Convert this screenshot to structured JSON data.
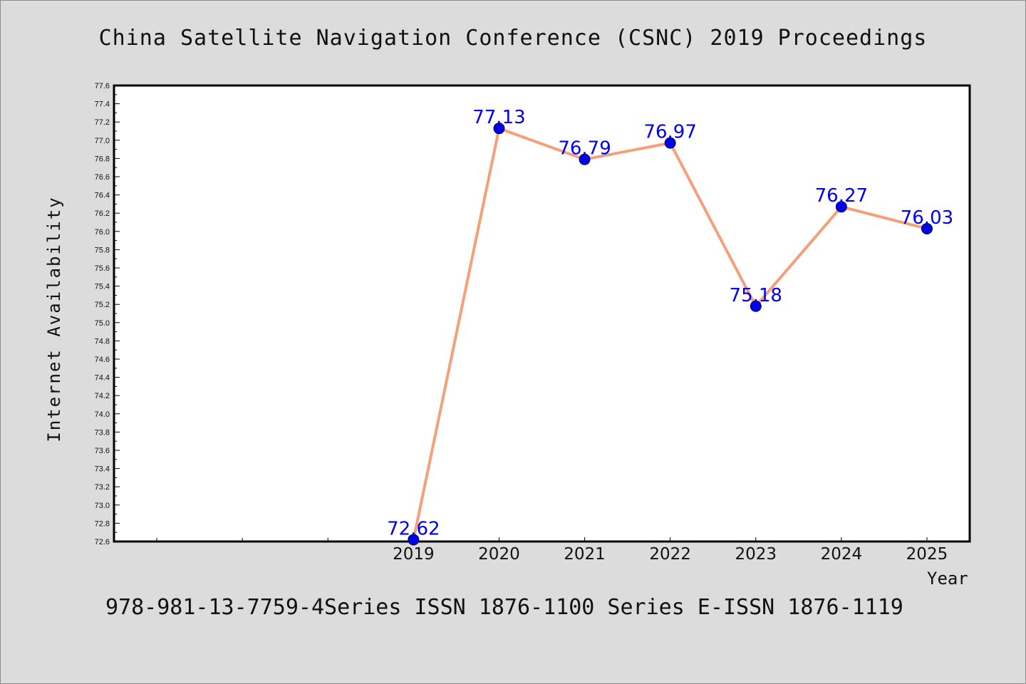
{
  "chart_data": {
    "type": "line",
    "title": "China Satellite Navigation Conference (CSNC) 2019 Proceedings",
    "footer": "978-981-13-7759-4Series ISSN 1876-1100 Series E-ISSN 1876-1119",
    "xlabel": "Year",
    "ylabel": "Internet Availability",
    "x": [
      2019,
      2020,
      2021,
      2022,
      2023,
      2024,
      2025
    ],
    "x_tick_labels": [
      "2019",
      "2020",
      "2021",
      "2022",
      "2023",
      "2024",
      "2025"
    ],
    "series": [
      {
        "values": [
          72.62,
          77.13,
          76.79,
          76.97,
          75.18,
          76.27,
          76.03
        ],
        "labels": [
          "72.62",
          "77.13",
          "76.79",
          "76.97",
          "75.18",
          "76.27",
          "76.03"
        ]
      }
    ],
    "xlim": [
      2015.5,
      2025.5
    ],
    "ylim": [
      72.6,
      77.6
    ],
    "y_ticks": [
      72.6,
      72.8,
      73.0,
      73.2,
      73.4,
      73.6,
      73.8,
      74.0,
      74.2,
      74.4,
      74.6,
      74.8,
      75.0,
      75.2,
      75.4,
      75.6,
      75.8,
      76.0,
      76.2,
      76.4,
      76.6,
      76.8,
      77.0,
      77.2,
      77.4,
      77.6
    ],
    "y_tick_labels": [
      "72.6",
      "72.8",
      "73.0",
      "73.2",
      "73.4",
      "73.6",
      "73.8",
      "74.0",
      "74.2",
      "74.4",
      "74.6",
      "74.8",
      "75.0",
      "75.2",
      "75.4",
      "75.6",
      "75.8",
      "76.0",
      "76.2",
      "76.4",
      "76.6",
      "76.8",
      "77.0",
      "77.2",
      "77.4",
      "77.6"
    ],
    "unlabeled_x_ticks": [
      2016,
      2017,
      2018
    ],
    "grid": false,
    "legend": "none",
    "line_color": "#f4a07a",
    "marker_color": "#0000ee",
    "label_color": "#0000ee",
    "background_color": "#dcdcdc",
    "plot_background_color": "#ffffff"
  }
}
